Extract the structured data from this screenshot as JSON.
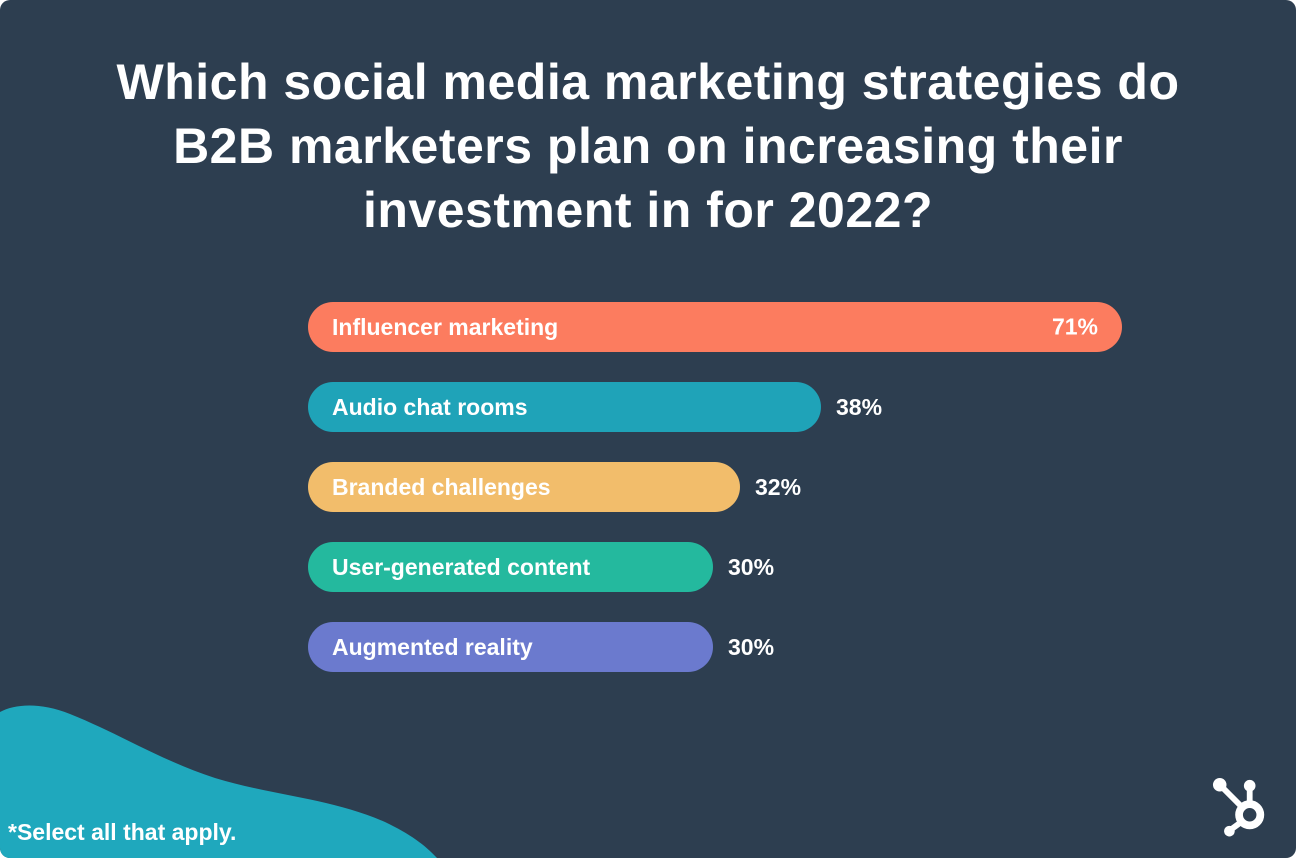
{
  "page": {
    "background_color": "#2d3e50",
    "text_color": "#ffffff",
    "wave_color": "#1fa8bd",
    "footnote": "*Select all that apply.",
    "logo_icon": "hubspot-sprocket-icon"
  },
  "chart_data": {
    "type": "bar",
    "orientation": "horizontal",
    "title": "Which social media marketing strategies do B2B marketers plan on increasing their investment in for 2022?",
    "categories": [
      "Influencer marketing",
      "Audio chat rooms",
      "Branded challenges",
      "User-generated content",
      "Augmented reality"
    ],
    "values": [
      71,
      38,
      32,
      30,
      30
    ],
    "value_labels": [
      "71%",
      "38%",
      "32%",
      "30%",
      "30%"
    ],
    "bar_colors": [
      "#fc7c5f",
      "#1fa3b8",
      "#f2bd6b",
      "#24b99e",
      "#6b7ace"
    ],
    "value_label_placement": [
      "inside",
      "outside",
      "outside",
      "outside",
      "outside"
    ],
    "xlim": [
      0,
      100
    ],
    "grid": false,
    "legend": false,
    "footnote": "*Select all that apply."
  }
}
